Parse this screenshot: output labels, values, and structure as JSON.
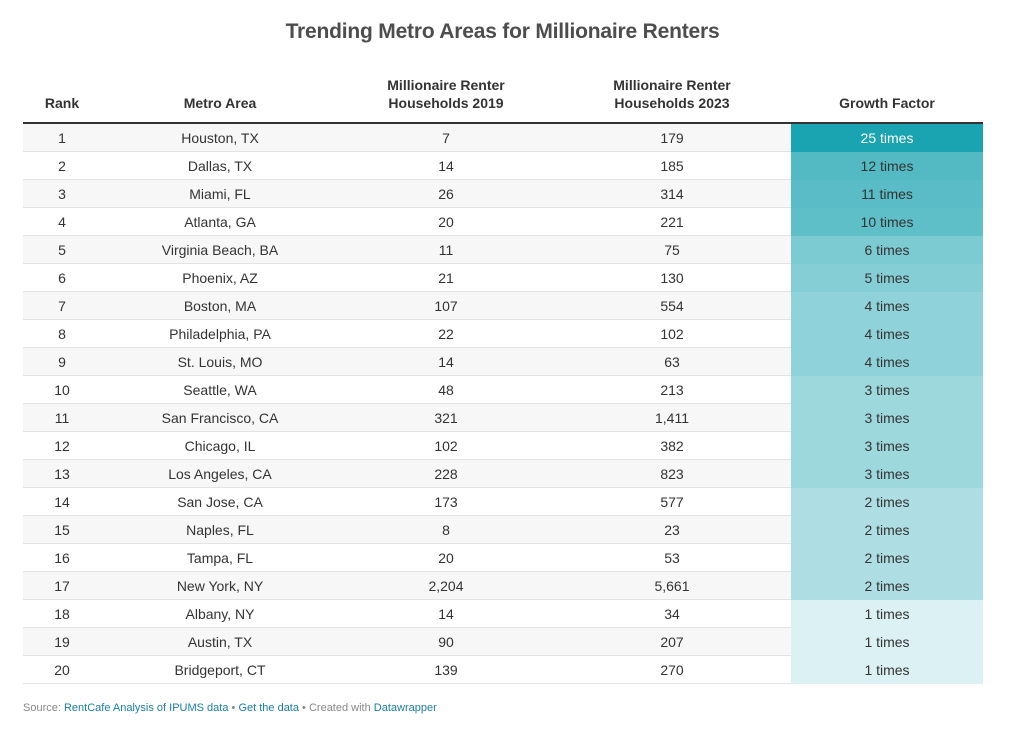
{
  "title": "Trending Metro Areas for Millionaire Renters",
  "columns": {
    "rank": "Rank",
    "metro": "Metro Area",
    "h2019_line1": "Millionaire Renter",
    "h2019_line2": "Households 2019",
    "h2023_line1": "Millionaire Renter",
    "h2023_line2": "Households 2023",
    "growth": "Growth Factor"
  },
  "colors": {
    "growth_max": "#1aa3b0",
    "growth_min": "#dcf1f3"
  },
  "chart_data": {
    "type": "table",
    "title": "Trending Metro Areas for Millionaire Renters",
    "rows": [
      {
        "rank": "1",
        "metro": "Houston, TX",
        "h2019": "7",
        "h2023": "179",
        "growth": "25 times",
        "factor": 25
      },
      {
        "rank": "2",
        "metro": "Dallas, TX",
        "h2019": "14",
        "h2023": "185",
        "growth": "12 times",
        "factor": 12
      },
      {
        "rank": "3",
        "metro": "Miami, FL",
        "h2019": "26",
        "h2023": "314",
        "growth": "11 times",
        "factor": 11
      },
      {
        "rank": "4",
        "metro": "Atlanta, GA",
        "h2019": "20",
        "h2023": "221",
        "growth": "10 times",
        "factor": 10
      },
      {
        "rank": "5",
        "metro": "Virginia Beach, BA",
        "h2019": "11",
        "h2023": "75",
        "growth": "6 times",
        "factor": 6
      },
      {
        "rank": "6",
        "metro": "Phoenix, AZ",
        "h2019": "21",
        "h2023": "130",
        "growth": "5 times",
        "factor": 5
      },
      {
        "rank": "7",
        "metro": "Boston, MA",
        "h2019": "107",
        "h2023": "554",
        "growth": "4 times",
        "factor": 4
      },
      {
        "rank": "8",
        "metro": "Philadelphia, PA",
        "h2019": "22",
        "h2023": "102",
        "growth": "4 times",
        "factor": 4
      },
      {
        "rank": "9",
        "metro": "St. Louis, MO",
        "h2019": "14",
        "h2023": "63",
        "growth": "4 times",
        "factor": 4
      },
      {
        "rank": "10",
        "metro": "Seattle, WA",
        "h2019": "48",
        "h2023": "213",
        "growth": "3 times",
        "factor": 3
      },
      {
        "rank": "11",
        "metro": "San Francisco, CA",
        "h2019": "321",
        "h2023": "1,411",
        "growth": "3 times",
        "factor": 3
      },
      {
        "rank": "12",
        "metro": "Chicago, IL",
        "h2019": "102",
        "h2023": "382",
        "growth": "3 times",
        "factor": 3
      },
      {
        "rank": "13",
        "metro": "Los Angeles, CA",
        "h2019": "228",
        "h2023": "823",
        "growth": "3 times",
        "factor": 3
      },
      {
        "rank": "14",
        "metro": "San Jose, CA",
        "h2019": "173",
        "h2023": "577",
        "growth": "2 times",
        "factor": 2
      },
      {
        "rank": "15",
        "metro": "Naples, FL",
        "h2019": "8",
        "h2023": "23",
        "growth": "2 times",
        "factor": 2
      },
      {
        "rank": "16",
        "metro": "Tampa, FL",
        "h2019": "20",
        "h2023": "53",
        "growth": "2 times",
        "factor": 2
      },
      {
        "rank": "17",
        "metro": "New York, NY",
        "h2019": "2,204",
        "h2023": "5,661",
        "growth": "2 times",
        "factor": 2
      },
      {
        "rank": "18",
        "metro": "Albany, NY",
        "h2019": "14",
        "h2023": "34",
        "growth": "1 times",
        "factor": 1
      },
      {
        "rank": "19",
        "metro": "Austin, TX",
        "h2019": "90",
        "h2023": "207",
        "growth": "1 times",
        "factor": 1
      },
      {
        "rank": "20",
        "metro": "Bridgeport, CT",
        "h2019": "139",
        "h2023": "270",
        "growth": "1 times",
        "factor": 1
      }
    ]
  },
  "footer": {
    "source_label": "Source:",
    "source_link": "RentCafe Analysis of IPUMS data",
    "sep1": "•",
    "get_data": "Get the data",
    "sep2": "•",
    "created_with": "Created with",
    "datawrapper": "Datawrapper"
  }
}
